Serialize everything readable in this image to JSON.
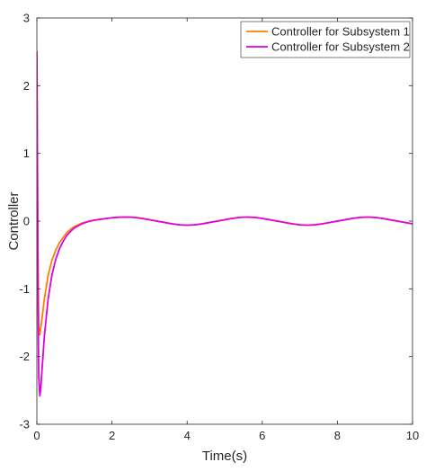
{
  "chart_data": {
    "type": "line",
    "title": "",
    "xlabel": "Time(s)",
    "ylabel": "Controller",
    "xlim": [
      0,
      10
    ],
    "ylim": [
      -3,
      3
    ],
    "xticks": [
      0,
      2,
      4,
      6,
      8,
      10
    ],
    "xtick_labels": [
      "0",
      "2",
      "4",
      "6",
      "8",
      "10"
    ],
    "yticks": [
      -3,
      -2,
      -1,
      0,
      1,
      2,
      3
    ],
    "ytick_labels": [
      "-3",
      "-2",
      "-1",
      "0",
      "1",
      "2",
      "3"
    ],
    "grid": false,
    "legend_position": "top-right",
    "series": [
      {
        "name": "Controller for Subsystem 1",
        "color": "#FF8000",
        "x": [
          0,
          0.01,
          0.03,
          0.05,
          0.08,
          0.1,
          0.15,
          0.2,
          0.3,
          0.4,
          0.5,
          0.6,
          0.7,
          0.8,
          0.9,
          1.0,
          1.2,
          1.4,
          1.6,
          1.8,
          2.0,
          2.2,
          2.4,
          2.6,
          2.8,
          3.0,
          3.2,
          3.4,
          3.6,
          3.8,
          4.0,
          4.2,
          4.4,
          4.6,
          4.8,
          5.0,
          5.2,
          5.4,
          5.6,
          5.8,
          6.0,
          6.2,
          6.4,
          6.6,
          6.8,
          7.0,
          7.2,
          7.4,
          7.6,
          7.8,
          8.0,
          8.2,
          8.4,
          8.6,
          8.8,
          9.0,
          9.2,
          9.4,
          9.6,
          9.8,
          10.0
        ],
        "y": [
          2.5,
          1.5,
          -0.5,
          -1.55,
          -1.68,
          -1.6,
          -1.38,
          -1.15,
          -0.8,
          -0.58,
          -0.43,
          -0.32,
          -0.24,
          -0.17,
          -0.12,
          -0.08,
          -0.03,
          0.0,
          0.02,
          0.035,
          0.05,
          0.058,
          0.06,
          0.055,
          0.04,
          0.02,
          0.0,
          -0.02,
          -0.04,
          -0.055,
          -0.06,
          -0.055,
          -0.04,
          -0.02,
          0.0,
          0.02,
          0.04,
          0.055,
          0.06,
          0.055,
          0.04,
          0.02,
          0.0,
          -0.02,
          -0.04,
          -0.055,
          -0.06,
          -0.055,
          -0.04,
          -0.02,
          0.0,
          0.02,
          0.04,
          0.055,
          0.06,
          0.055,
          0.04,
          0.02,
          0.0,
          -0.02,
          -0.04
        ]
      },
      {
        "name": "Controller for Subsystem 2",
        "color": "#E100E1",
        "x": [
          0,
          0.01,
          0.03,
          0.05,
          0.08,
          0.1,
          0.15,
          0.2,
          0.3,
          0.4,
          0.5,
          0.6,
          0.7,
          0.8,
          0.9,
          1.0,
          1.2,
          1.4,
          1.6,
          1.8,
          2.0,
          2.2,
          2.4,
          2.6,
          2.8,
          3.0,
          3.2,
          3.4,
          3.6,
          3.8,
          4.0,
          4.2,
          4.4,
          4.6,
          4.8,
          5.0,
          5.2,
          5.4,
          5.6,
          5.8,
          6.0,
          6.2,
          6.4,
          6.6,
          6.8,
          7.0,
          7.2,
          7.4,
          7.6,
          7.8,
          8.0,
          8.2,
          8.4,
          8.6,
          8.8,
          9.0,
          9.2,
          9.4,
          9.6,
          9.8,
          10.0
        ],
        "y": [
          2.5,
          1.2,
          -1.0,
          -2.3,
          -2.58,
          -2.5,
          -2.1,
          -1.7,
          -1.15,
          -0.8,
          -0.57,
          -0.41,
          -0.3,
          -0.21,
          -0.15,
          -0.1,
          -0.04,
          0.0,
          0.02,
          0.035,
          0.05,
          0.058,
          0.06,
          0.055,
          0.04,
          0.02,
          0.0,
          -0.02,
          -0.04,
          -0.055,
          -0.06,
          -0.055,
          -0.04,
          -0.02,
          0.0,
          0.02,
          0.04,
          0.055,
          0.06,
          0.055,
          0.04,
          0.02,
          0.0,
          -0.02,
          -0.04,
          -0.055,
          -0.06,
          -0.055,
          -0.04,
          -0.02,
          0.0,
          0.02,
          0.04,
          0.055,
          0.06,
          0.055,
          0.04,
          0.02,
          0.0,
          -0.02,
          -0.04
        ]
      }
    ]
  }
}
